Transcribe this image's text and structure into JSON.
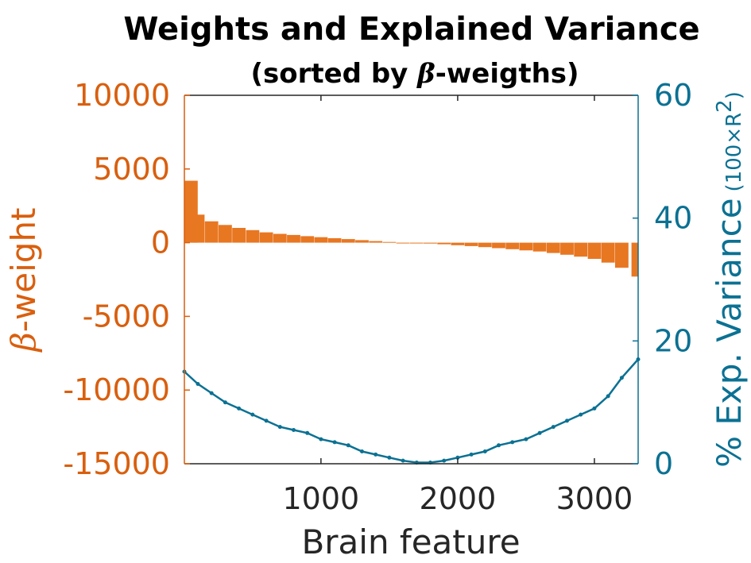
{
  "colors": {
    "left_axis": "#d95f0e",
    "right_axis": "#0b7193",
    "bars": "#e87722",
    "line": "#0b7193",
    "axis": "#262626"
  },
  "chart_data": {
    "type": "bar+line",
    "title": "Weights and Explained Variance",
    "subtitle_prefix": "(sorted by ",
    "subtitle_symbol": "β",
    "subtitle_suffix": "-weigths)",
    "xlabel": "Brain feature",
    "ylabel_left_symbol": "β",
    "ylabel_left_text": "-weight",
    "ylabel_right_main": "% Exp. Variance",
    "ylabel_right_unit": "(100×R",
    "ylabel_right_unit_sup": "2",
    "ylabel_right_unit_close": ")",
    "xlim": [
      1,
      3320
    ],
    "ylim_left": [
      -15000,
      10000
    ],
    "ylim_right": [
      0,
      60
    ],
    "x_ticks": [
      {
        "value": 1000,
        "label": "1000"
      },
      {
        "value": 2000,
        "label": "2000"
      },
      {
        "value": 3000,
        "label": "3000"
      }
    ],
    "y_ticks_left": [
      {
        "value": 10000,
        "label": "10000"
      },
      {
        "value": 5000,
        "label": "5000"
      },
      {
        "value": 0,
        "label": "0"
      },
      {
        "value": -5000,
        "label": "-5000"
      },
      {
        "value": -10000,
        "label": "-10000"
      },
      {
        "value": -15000,
        "label": "-15000"
      }
    ],
    "y_ticks_right": [
      {
        "value": 60,
        "label": "60"
      },
      {
        "value": 40,
        "label": "40"
      },
      {
        "value": 20,
        "label": "20"
      },
      {
        "value": 0,
        "label": "0"
      }
    ],
    "series": [
      {
        "type": "bar",
        "axis": "left",
        "x": [
          1,
          100,
          200,
          300,
          400,
          500,
          600,
          700,
          800,
          900,
          1000,
          1100,
          1200,
          1300,
          1400,
          1500,
          1600,
          1700,
          1800,
          1900,
          2000,
          2100,
          2200,
          2300,
          2400,
          2500,
          2600,
          2700,
          2800,
          2900,
          3000,
          3100,
          3200,
          3320
        ],
        "values": [
          4200,
          1900,
          1450,
          1200,
          1000,
          850,
          700,
          600,
          520,
          440,
          370,
          300,
          240,
          170,
          110,
          50,
          0,
          -20,
          -60,
          -110,
          -170,
          -230,
          -300,
          -370,
          -440,
          -520,
          -600,
          -700,
          -820,
          -950,
          -1100,
          -1350,
          -1700,
          -2300
        ]
      },
      {
        "type": "line",
        "axis": "right",
        "x": [
          1,
          100,
          200,
          300,
          400,
          500,
          600,
          700,
          800,
          900,
          1000,
          1100,
          1200,
          1300,
          1400,
          1500,
          1600,
          1700,
          1800,
          1900,
          2000,
          2100,
          2200,
          2300,
          2400,
          2500,
          2600,
          2700,
          2800,
          2900,
          3000,
          3100,
          3200,
          3320
        ],
        "values": [
          15,
          13,
          11.5,
          10,
          9,
          8,
          7,
          6,
          5.5,
          5,
          4,
          3.5,
          3,
          2,
          1.5,
          1,
          0.5,
          0.2,
          0.2,
          0.5,
          1,
          1.5,
          2,
          3,
          3.5,
          4,
          5,
          6,
          7,
          8,
          9,
          11,
          14,
          17
        ]
      }
    ]
  }
}
